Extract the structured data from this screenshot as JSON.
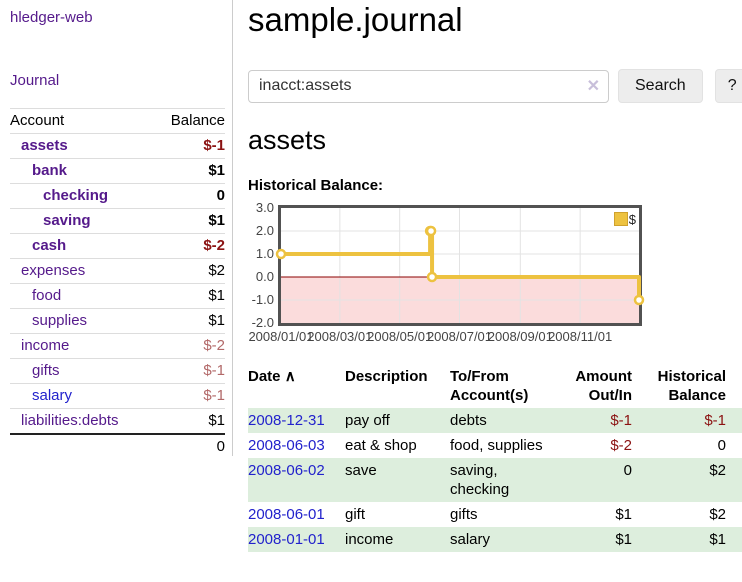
{
  "brand": "hledger-web",
  "nav": {
    "journal": "Journal"
  },
  "sidebar": {
    "account_header": "Account",
    "balance_header": "Balance",
    "rows": [
      {
        "account": "assets",
        "balance": "$-1"
      },
      {
        "account": "bank",
        "balance": "$1"
      },
      {
        "account": "checking",
        "balance": "0"
      },
      {
        "account": "saving",
        "balance": "$1"
      },
      {
        "account": "cash",
        "balance": "$-2"
      },
      {
        "account": "expenses",
        "balance": "$2"
      },
      {
        "account": "food",
        "balance": "$1"
      },
      {
        "account": "supplies",
        "balance": "$1"
      },
      {
        "account": "income",
        "balance": "$-2"
      },
      {
        "account": "gifts",
        "balance": "$-1"
      },
      {
        "account": "salary",
        "balance": "$-1"
      },
      {
        "account": "liabilities:debts",
        "balance": "$1"
      }
    ],
    "total": "0"
  },
  "main": {
    "title": "sample.journal",
    "search": {
      "value": "inacct:assets",
      "clear_icon": "✕",
      "search_button": "Search",
      "help_button": "?"
    },
    "account_heading": "assets",
    "section_label": "Historical Balance:"
  },
  "chart_data": {
    "type": "line",
    "step": true,
    "title": "Historical Balance",
    "xlim": [
      "2008-01-01",
      "2008-12-31"
    ],
    "ylim": [
      -2,
      3
    ],
    "grid": true,
    "legend": {
      "position": "top-right",
      "label": "$"
    },
    "series": [
      {
        "name": "$",
        "color": "#edc240",
        "points": [
          [
            "2008-01-01",
            1
          ],
          [
            "2008-06-01",
            2
          ],
          [
            "2008-06-02",
            2
          ],
          [
            "2008-06-03",
            0
          ],
          [
            "2008-12-31",
            -1
          ]
        ]
      }
    ],
    "x_ticks": [
      {
        "label": "2008/01/01",
        "date": "2008-01-01"
      },
      {
        "label": "2008/03/01",
        "date": "2008-03-01"
      },
      {
        "label": "2008/05/01",
        "date": "2008-05-01"
      },
      {
        "label": "2008/07/01",
        "date": "2008-07-01"
      },
      {
        "label": "2008/09/01",
        "date": "2008-09-01"
      },
      {
        "label": "2008/11/01",
        "date": "2008-11-01"
      }
    ],
    "y_ticks": [
      "3.0",
      "2.0",
      "1.0",
      "0.0",
      "-1.0",
      "-2.0"
    ],
    "negative_region_color": "#fbdcdc",
    "zero_line_color": "#8b0000",
    "gridline_color": "#e3e3e3"
  },
  "transactions": {
    "headers": {
      "date": "Date",
      "sort_icon": "∧",
      "description": "Description",
      "tofrom": "To/From\nAccount(s)",
      "amount": "Amount\nOut/In",
      "balance": "Historical\nBalance"
    },
    "rows": [
      {
        "date": "2008-12-31",
        "description": "pay off",
        "tofrom": "debts",
        "amount": "$-1",
        "balance": "$-1"
      },
      {
        "date": "2008-06-03",
        "description": "eat & shop",
        "tofrom": "food, supplies",
        "amount": "$-2",
        "balance": "0"
      },
      {
        "date": "2008-06-02",
        "description": "save",
        "tofrom": "saving,\nchecking",
        "amount": "0",
        "balance": "$2"
      },
      {
        "date": "2008-06-01",
        "description": "gift",
        "tofrom": "gifts",
        "amount": "$1",
        "balance": "$2"
      },
      {
        "date": "2008-01-01",
        "description": "income",
        "tofrom": "salary",
        "amount": "$1",
        "balance": "$1"
      }
    ]
  }
}
